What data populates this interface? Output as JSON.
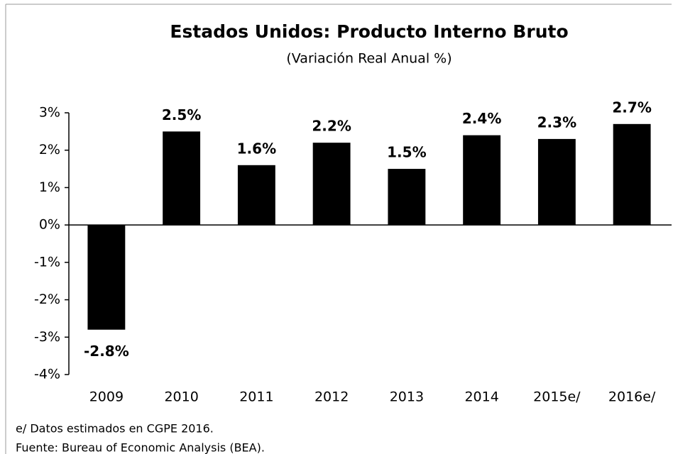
{
  "chart_data": {
    "type": "bar",
    "title": "Estados Unidos: Producto Interno Bruto",
    "subtitle": "(Variación Real Anual %)",
    "categories": [
      "2009",
      "2010",
      "2011",
      "2012",
      "2013",
      "2014",
      "2015e/",
      "2016e/"
    ],
    "values": [
      -2.8,
      2.5,
      1.6,
      2.2,
      1.5,
      2.4,
      2.3,
      2.7
    ],
    "value_labels": [
      "-2.8%",
      "2.5%",
      "1.6%",
      "2.2%",
      "1.5%",
      "2.4%",
      "2.3%",
      "2.7%"
    ],
    "color": "#000000",
    "ylim": [
      -4,
      3
    ],
    "yticks": [
      {
        "value": -4,
        "label": "-4%"
      },
      {
        "value": -3,
        "label": "-3%"
      },
      {
        "value": -2,
        "label": "-2%"
      },
      {
        "value": -1,
        "label": "-1%"
      },
      {
        "value": 0,
        "label": "0%"
      },
      {
        "value": 1,
        "label": "1%"
      },
      {
        "value": 2,
        "label": "2%"
      },
      {
        "value": 3,
        "label": "3%"
      }
    ],
    "grid": false,
    "notes": [
      "e/ Datos estimados en CGPE 2016.",
      "Fuente: Bureau of Economic Analysis (BEA)."
    ]
  }
}
